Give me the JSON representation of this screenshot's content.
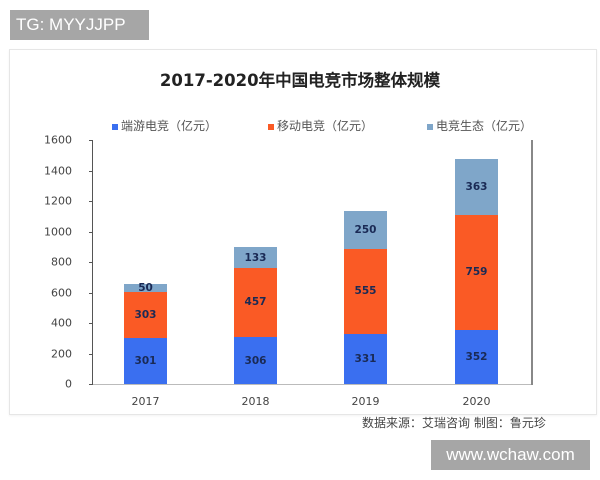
{
  "watermark_top": "TG: MYYJJPP",
  "watermark_bottom": "www.wchaw.com",
  "source_note": "数据来源：艾瑞咨询  制图：鲁元珍",
  "legend": [
    {
      "label": "端游电竞（亿元）",
      "color": "#3a6ff0"
    },
    {
      "label": "移动电竞（亿元）",
      "color": "#fa5a25"
    },
    {
      "label": "电竞生态（亿元）",
      "color": "#7fa6c9"
    }
  ],
  "y_ticks": [
    "0",
    "200",
    "400",
    "600",
    "800",
    "1000",
    "1200",
    "1400",
    "1600"
  ],
  "chart_data": {
    "type": "bar",
    "stacked": true,
    "title": "2017-2020年中国电竞市场整体规模",
    "xlabel": "",
    "ylabel": "",
    "categories": [
      "2017",
      "2018",
      "2019",
      "2020"
    ],
    "series": [
      {
        "name": "端游电竞（亿元）",
        "values": [
          301,
          306,
          331,
          352
        ],
        "color": "#3a6ff0"
      },
      {
        "name": "移动电竞（亿元）",
        "values": [
          303,
          457,
          555,
          759
        ],
        "color": "#fa5a25"
      },
      {
        "name": "电竞生态（亿元）",
        "values": [
          50,
          133,
          250,
          363
        ],
        "color": "#7fa6c9"
      }
    ],
    "ylim": [
      0,
      1600
    ],
    "yticks": [
      0,
      200,
      400,
      600,
      800,
      1000,
      1200,
      1400,
      1600
    ],
    "grid": false,
    "legend_position": "top",
    "source": "数据来源：艾瑞咨询  制图：鲁元珍"
  }
}
